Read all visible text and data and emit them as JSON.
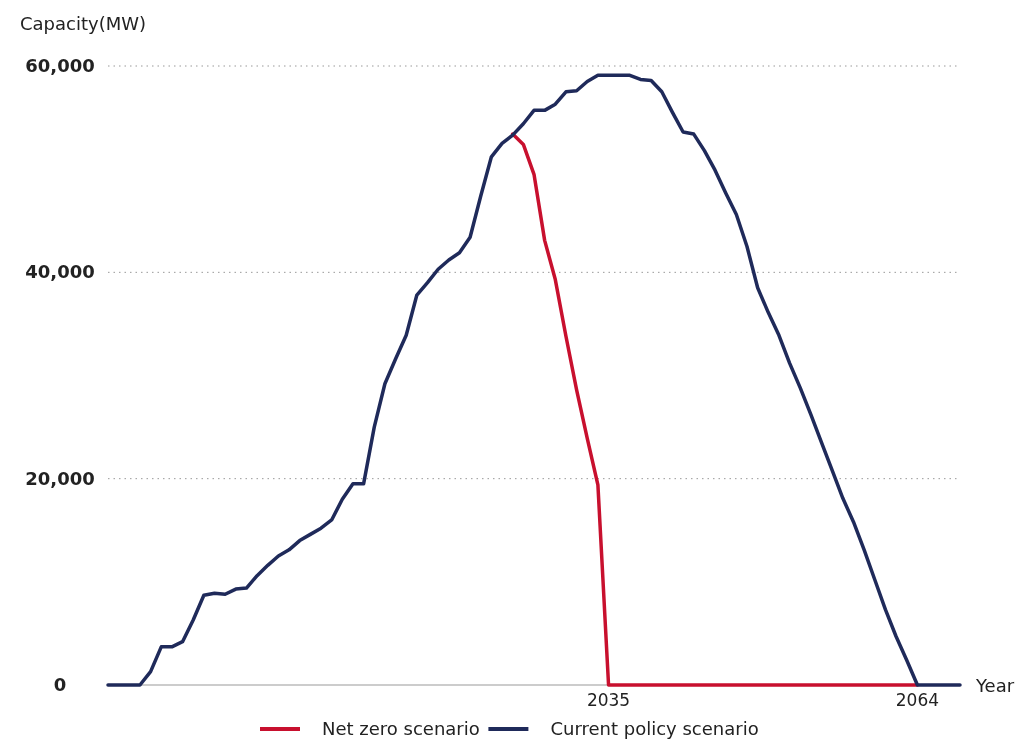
{
  "chart_data": {
    "type": "line",
    "ylabel": "Capacity(MW)",
    "xlabel": "Year",
    "ylim": [
      0,
      60000
    ],
    "yticks": [
      {
        "value": 0,
        "label": "0"
      },
      {
        "value": 20000,
        "label": "20,000"
      },
      {
        "value": 40000,
        "label": "40,000"
      },
      {
        "value": 60000,
        "label": "60,000"
      }
    ],
    "grid": "y",
    "legend": "bottom",
    "line_style": "solid",
    "marker": "none",
    "categories": [
      null,
      null,
      null,
      null,
      null,
      null,
      null,
      null,
      null,
      null,
      null,
      null,
      null,
      null,
      null,
      null,
      null,
      null,
      null,
      null,
      null,
      null,
      null,
      null,
      null,
      null,
      null,
      null,
      null,
      null,
      null,
      null,
      null,
      null,
      null,
      null,
      null,
      null,
      null,
      null,
      null,
      null,
      null,
      null,
      null,
      null,
      null,
      "2035",
      null,
      null,
      null,
      null,
      null,
      null,
      null,
      null,
      null,
      null,
      null,
      null,
      null,
      null,
      null,
      null,
      null,
      null,
      null,
      null,
      null,
      null,
      null,
      null,
      null,
      null,
      null,
      null,
      "2064",
      null,
      null,
      null,
      null
    ],
    "series": [
      {
        "name": "Net zero scenario",
        "color": "#c8102e",
        "values": [
          null,
          null,
          null,
          null,
          null,
          null,
          null,
          null,
          null,
          null,
          null,
          null,
          null,
          null,
          null,
          null,
          null,
          null,
          null,
          null,
          null,
          null,
          null,
          null,
          null,
          null,
          null,
          null,
          null,
          null,
          null,
          null,
          null,
          null,
          null,
          null,
          null,
          null,
          53400,
          52400,
          49500,
          43100,
          39300,
          33800,
          28600,
          23900,
          19400,
          0,
          0,
          0,
          0,
          0,
          0,
          0,
          0,
          0,
          0,
          0,
          0,
          0,
          0,
          0,
          0,
          0,
          0,
          0,
          0,
          0,
          0,
          0,
          0,
          0,
          0,
          0,
          0,
          0,
          0,
          null,
          null,
          null,
          null
        ]
      },
      {
        "name": "Current policy scenario",
        "color": "#1f2a5a",
        "values": [
          0,
          0,
          0,
          0,
          1300,
          3700,
          3700,
          4200,
          6300,
          8700,
          8900,
          8800,
          9300,
          9400,
          10600,
          11600,
          12500,
          13100,
          14000,
          14600,
          15200,
          16000,
          18000,
          19500,
          19500,
          25000,
          29200,
          31600,
          33900,
          37800,
          39000,
          40300,
          41200,
          41900,
          43400,
          47400,
          51200,
          52500,
          53300,
          54400,
          55700,
          55700,
          56300,
          57500,
          57600,
          58500,
          59100,
          59100,
          59100,
          59100,
          58700,
          58600,
          57500,
          55500,
          53600,
          53400,
          51800,
          49900,
          47700,
          45600,
          42500,
          38500,
          36100,
          33900,
          31200,
          28800,
          26200,
          23500,
          20800,
          18100,
          15800,
          13100,
          10200,
          7300,
          4700,
          2400,
          0,
          0,
          0,
          0,
          0
        ]
      }
    ]
  }
}
